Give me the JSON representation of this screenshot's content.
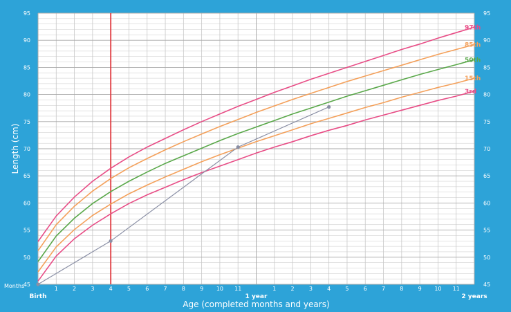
{
  "chart_data": {
    "type": "line",
    "title": "",
    "xlabel": "Age (completed months and years)",
    "ylabel": "Length (cm)",
    "xlim": [
      0,
      24
    ],
    "ylim": [
      45,
      95
    ],
    "y_ticks": [
      45,
      50,
      55,
      60,
      65,
      70,
      75,
      80,
      85,
      90,
      95
    ],
    "x_axis_prefix": "Months",
    "x_ticks": [
      {
        "x": 0,
        "label": "Birth",
        "bold": true
      },
      {
        "x": 1,
        "label": "1"
      },
      {
        "x": 2,
        "label": "2"
      },
      {
        "x": 3,
        "label": "3"
      },
      {
        "x": 4,
        "label": "4"
      },
      {
        "x": 5,
        "label": "5"
      },
      {
        "x": 6,
        "label": "6"
      },
      {
        "x": 7,
        "label": "7"
      },
      {
        "x": 8,
        "label": "8"
      },
      {
        "x": 9,
        "label": "9"
      },
      {
        "x": 10,
        "label": "10"
      },
      {
        "x": 11,
        "label": "11"
      },
      {
        "x": 12,
        "label": "1 year",
        "bold": true
      },
      {
        "x": 13,
        "label": "1"
      },
      {
        "x": 14,
        "label": "2"
      },
      {
        "x": 15,
        "label": "3"
      },
      {
        "x": 16,
        "label": "4"
      },
      {
        "x": 17,
        "label": "5"
      },
      {
        "x": 18,
        "label": "6"
      },
      {
        "x": 19,
        "label": "7"
      },
      {
        "x": 20,
        "label": "8"
      },
      {
        "x": 21,
        "label": "9"
      },
      {
        "x": 22,
        "label": "10"
      },
      {
        "x": 23,
        "label": "11"
      },
      {
        "x": 24,
        "label": "2 years",
        "bold": true
      }
    ],
    "x": [
      0,
      1,
      2,
      3,
      4,
      5,
      6,
      7,
      8,
      9,
      10,
      11,
      12,
      13,
      14,
      15,
      16,
      17,
      18,
      19,
      20,
      21,
      22,
      23,
      24
    ],
    "series": [
      {
        "name": "97th",
        "color": "#e84d86",
        "values": [
          52.9,
          57.6,
          61.1,
          64.0,
          66.4,
          68.5,
          70.3,
          71.9,
          73.5,
          75.0,
          76.4,
          77.8,
          79.1,
          80.4,
          81.6,
          82.8,
          83.9,
          85.0,
          86.1,
          87.2,
          88.3,
          89.3,
          90.4,
          91.4,
          92.4
        ]
      },
      {
        "name": "85th",
        "color": "#f4a05a",
        "values": [
          51.2,
          56.0,
          59.4,
          62.2,
          64.5,
          66.5,
          68.2,
          69.8,
          71.3,
          72.7,
          74.1,
          75.4,
          76.7,
          77.9,
          79.1,
          80.2,
          81.3,
          82.4,
          83.4,
          84.4,
          85.4,
          86.4,
          87.4,
          88.3,
          89.2
        ]
      },
      {
        "name": "50th",
        "color": "#5aa84a",
        "values": [
          49.2,
          53.9,
          57.2,
          59.9,
          62.1,
          64.0,
          65.7,
          67.3,
          68.7,
          70.1,
          71.5,
          72.8,
          74.0,
          75.2,
          76.4,
          77.5,
          78.6,
          79.7,
          80.7,
          81.7,
          82.7,
          83.7,
          84.6,
          85.5,
          86.4
        ]
      },
      {
        "name": "15th",
        "color": "#f4a05a",
        "values": [
          47.3,
          51.9,
          55.1,
          57.7,
          59.8,
          61.7,
          63.3,
          64.8,
          66.2,
          67.6,
          68.9,
          70.1,
          71.3,
          72.4,
          73.5,
          74.6,
          75.6,
          76.6,
          77.6,
          78.5,
          79.5,
          80.4,
          81.3,
          82.1,
          83.0
        ]
      },
      {
        "name": "3rd",
        "color": "#e84d86",
        "values": [
          45.6,
          50.2,
          53.4,
          55.9,
          58.0,
          59.9,
          61.5,
          62.9,
          64.3,
          65.6,
          66.8,
          68.0,
          69.2,
          70.3,
          71.3,
          72.4,
          73.4,
          74.3,
          75.3,
          76.2,
          77.1,
          78.0,
          78.9,
          79.7,
          80.6
        ]
      }
    ],
    "measurements": [
      {
        "x": 0,
        "y": 45.0
      },
      {
        "x": 4,
        "y": 53.0
      },
      {
        "x": 11,
        "y": 70.3
      },
      {
        "x": 16,
        "y": 77.7
      }
    ],
    "highlight_x": 4,
    "colors": {
      "frame": "#2da3d8",
      "grid": "#c8c8c8",
      "major_grid": "#a8a8a8",
      "highlight": "#e0393e",
      "measurement": "#8a8fa5",
      "paper": "#ffffff"
    },
    "grid": true,
    "legend": "right-edge labels"
  }
}
